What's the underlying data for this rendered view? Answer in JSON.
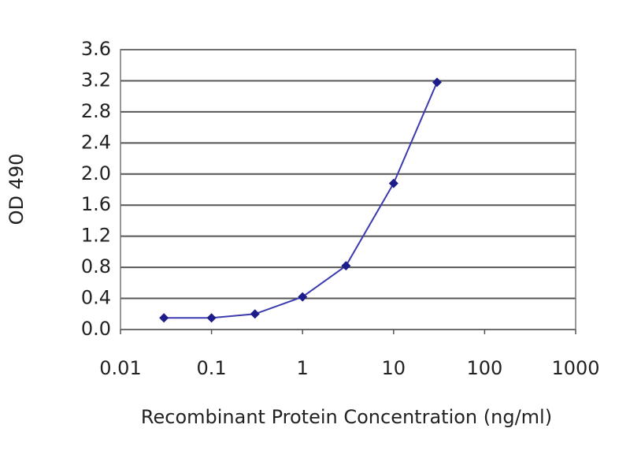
{
  "chart_data": {
    "type": "line",
    "x_label": "Recombinant Protein Concentration (ng/ml)",
    "y_label": "OD 490",
    "x": [
      0.03,
      0.1,
      0.3,
      1,
      3,
      10,
      30
    ],
    "values": [
      0.15,
      0.15,
      0.2,
      0.42,
      0.82,
      1.88,
      3.18
    ],
    "color": "#1c1c8a",
    "line_color": "#3b3bb0",
    "x_log": true,
    "xlim": [
      0.01,
      1000
    ],
    "xticks": [
      0.01,
      0.1,
      1,
      10,
      100,
      1000
    ],
    "ylim": [
      0,
      3.6
    ],
    "yticks": [
      {
        "value": 0,
        "label": "0.0"
      },
      0.4,
      0.8,
      1.2,
      1.6,
      {
        "value": 2,
        "label": "2.0"
      },
      2.4,
      2.8,
      3.2,
      3.6
    ],
    "grid": true
  }
}
